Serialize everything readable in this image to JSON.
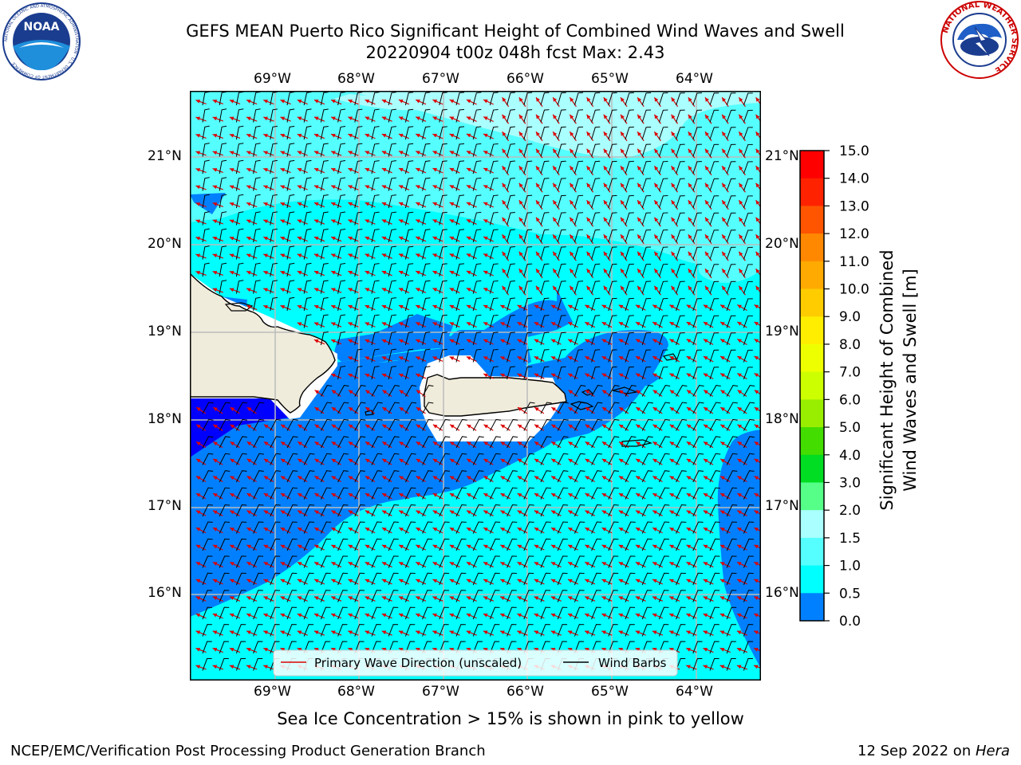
{
  "header": {
    "title_line1": "GEFS MEAN Puerto Rico Significant Height of Combined Wind Waves and Swell",
    "title_line2": "20220904 t00z 048h fcst   Max: 2.43"
  },
  "logos": {
    "noaa_logo_text": "NOAA",
    "noaa_ring_text": "NATIONAL OCEANIC AND ATMOSPHERIC ADMINISTRATION · U.S. DEPARTMENT OF COMMERCE",
    "nws_ring_text": "NATIONAL WEATHER SERVICE"
  },
  "map": {
    "lon_labels": [
      "69°W",
      "68°W",
      "67°W",
      "66°W",
      "65°W",
      "64°W"
    ],
    "lat_labels": [
      "21°N",
      "20°N",
      "19°N",
      "18°N",
      "17°N",
      "16°N"
    ],
    "legend": {
      "primary_wave": "Primary Wave Direction (unscaled)",
      "wind_barbs": "Wind Barbs"
    },
    "colors": {
      "ocean_main": "#00ffff",
      "ocean_high": "#55ffff",
      "ocean_highest": "#aaffff",
      "ocean_mid": "#0080ff",
      "ocean_low": "#0000ff",
      "land": "#f0ecdc",
      "wave_arrow": "#dd0000",
      "wind_barb": "#000000"
    }
  },
  "colorbar": {
    "label_line1": "Significant Height of Combined",
    "label_line2": "Wind Waves and Swell [m]",
    "ticks": [
      "15.0",
      "14.0",
      "13.0",
      "12.0",
      "11.0",
      "10.0",
      "9.0",
      "8.0",
      "7.0",
      "6.0",
      "5.0",
      "4.0",
      "3.0",
      "2.0",
      "1.5",
      "1.0",
      "0.5",
      "0.0"
    ],
    "bands": [
      "#ff0000",
      "#ff2200",
      "#ff5500",
      "#ff8800",
      "#ffaa00",
      "#ffcc00",
      "#ffee00",
      "#eeff00",
      "#ccff00",
      "#99ee00",
      "#44dd00",
      "#00dd22",
      "#55ff88",
      "#aaffff",
      "#55ffff",
      "#00ffff",
      "#0080ff",
      "#0000ff"
    ]
  },
  "note": "Sea Ice Concentration > 15% is shown in pink to yellow",
  "footer": {
    "left": "NCEP/EMC/Verification Post Processing Product Generation Branch",
    "right_date": "12 Sep 2022 on ",
    "right_host": "Hera"
  }
}
